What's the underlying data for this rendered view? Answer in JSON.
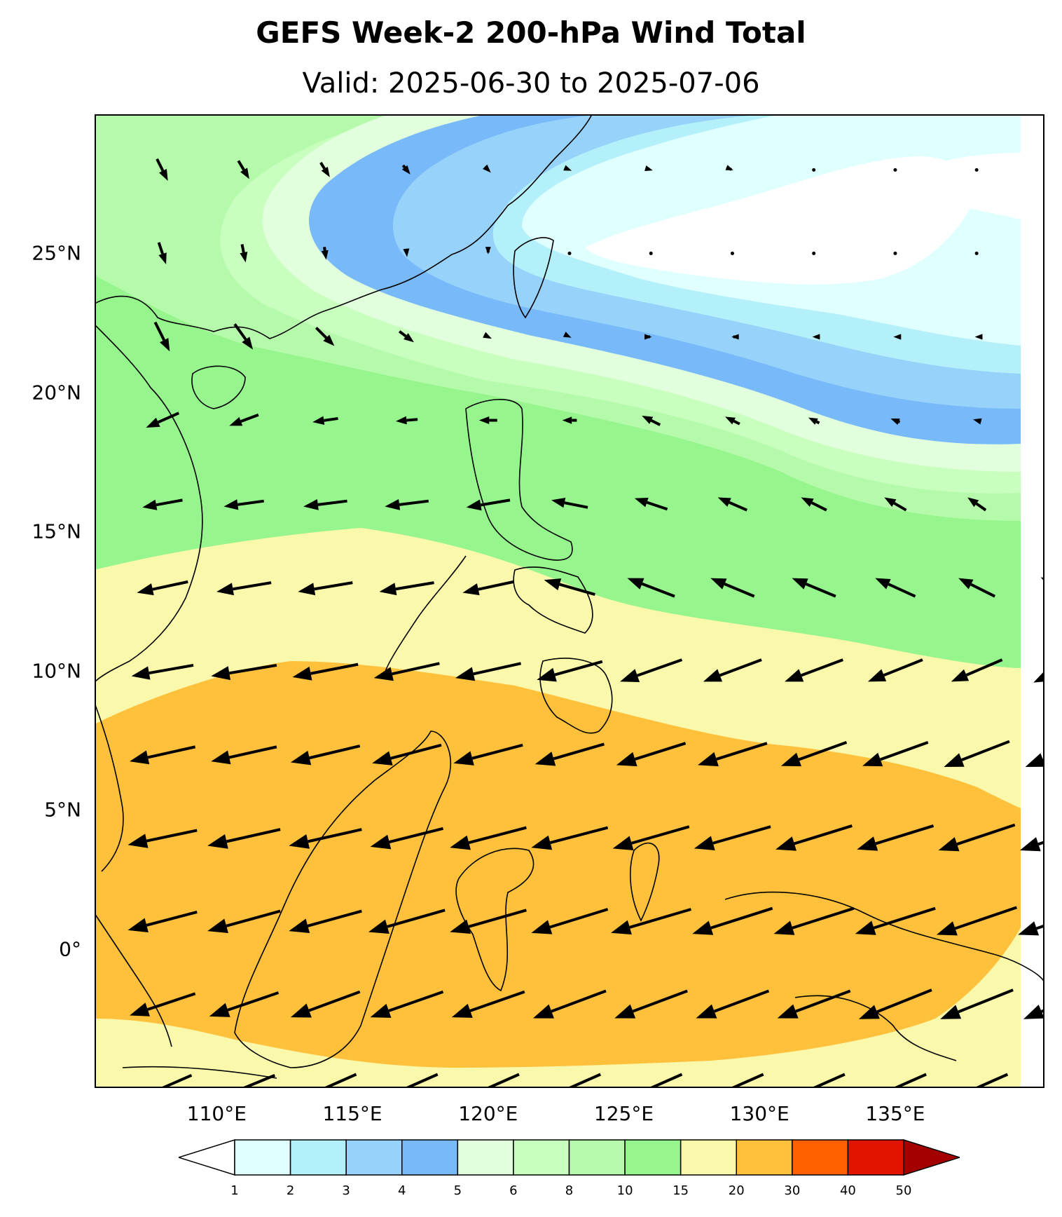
{
  "title": "GEFS Week-2 200-hPa Wind Total",
  "subtitle": "Valid: 2025-06-30 to 2025-07-06",
  "map": {
    "extent": {
      "lon_min": 105.5,
      "lon_max": 140.5,
      "lat_min": -5,
      "lat_max": 30
    },
    "lat_ticks": [
      {
        "value": 25,
        "label": "25°N"
      },
      {
        "value": 20,
        "label": "20°N"
      },
      {
        "value": 15,
        "label": "15°N"
      },
      {
        "value": 10,
        "label": "10°N"
      },
      {
        "value": 5,
        "label": "5°N"
      },
      {
        "value": 0,
        "label": "0°"
      }
    ],
    "lon_ticks": [
      {
        "value": 110,
        "label": "110°E"
      },
      {
        "value": 115,
        "label": "115°E"
      },
      {
        "value": 120,
        "label": "120°E"
      },
      {
        "value": 125,
        "label": "125°E"
      },
      {
        "value": 130,
        "label": "130°E"
      },
      {
        "value": 135,
        "label": "135°E"
      }
    ]
  },
  "colorbar": {
    "levels": [
      "1",
      "2",
      "3",
      "4",
      "5",
      "6",
      "8",
      "10",
      "15",
      "20",
      "30",
      "40",
      "50"
    ],
    "colors": [
      "#e0ffff",
      "#b4f0fa",
      "#96d2fa",
      "#78b9fa",
      "#e1ffdc",
      "#c8ffbe",
      "#b4faaa",
      "#96f58c",
      "#faf8aa",
      "#ffc03c",
      "#ff6000",
      "#e11400",
      "#a50000"
    ],
    "under_color": "#ffffff",
    "over_color": "#a50000"
  },
  "chart_data": {
    "type": "heatmap",
    "variable": "200-hPa wind speed (m/s) with wind vectors",
    "vector_rows": [
      {
        "lat": 28,
        "u": [
          3,
          3,
          2.5,
          2,
          1.5,
          1.2,
          1,
          0.5,
          0.3,
          0.2,
          0.1,
          0.1
        ],
        "v": [
          -6,
          -5,
          -4,
          -2.5,
          -1.5,
          -0.5,
          -0.3,
          -0.2,
          -0.1,
          -0.1,
          0,
          0
        ]
      },
      {
        "lat": 25,
        "u": [
          2,
          1,
          0.5,
          0.2,
          0,
          0,
          0,
          0,
          0,
          0,
          0,
          0.2
        ],
        "v": [
          -6,
          -5,
          -3.5,
          -2,
          -0.5,
          0,
          0,
          0,
          0,
          0,
          0,
          -0.2
        ]
      },
      {
        "lat": 22,
        "u": [
          4,
          5,
          5,
          4,
          2,
          1,
          0.5,
          -0.5,
          -0.8,
          -1,
          -1,
          -1
        ],
        "v": [
          -8,
          -7,
          -5,
          -3,
          -1,
          -0.5,
          0,
          0,
          0,
          0,
          0,
          0
        ]
      },
      {
        "lat": 19,
        "u": [
          -9,
          -8,
          -7,
          -6,
          -5,
          -4,
          -5,
          -4,
          -3,
          -2.5,
          -2,
          -1.5
        ],
        "v": [
          -4,
          -3,
          -1,
          -0.5,
          0,
          0,
          2.5,
          2,
          1.5,
          1,
          0.5,
          0.5
        ]
      },
      {
        "lat": 16,
        "u": [
          -11,
          -11,
          -12,
          -12,
          -12,
          -10,
          -9,
          -8,
          -7,
          -6,
          -5,
          -4.5
        ],
        "v": [
          -2,
          -1.5,
          -1.5,
          -1.5,
          -2,
          2,
          3,
          3.5,
          3.5,
          3.5,
          3.5,
          3.5
        ]
      },
      {
        "lat": 13,
        "u": [
          -14,
          -15,
          -15,
          -15,
          -14,
          -14,
          -13,
          -12,
          -12,
          -11,
          -10,
          -9.5
        ],
        "v": [
          -3,
          -2.5,
          -2.5,
          -2.5,
          -3,
          4,
          5,
          5,
          5,
          5,
          5,
          5.5
        ]
      },
      {
        "lat": 10,
        "u": [
          -17,
          -18,
          -18,
          -18,
          -18,
          -18,
          -17,
          -16,
          -16,
          -15,
          -14,
          -13.5
        ],
        "v": [
          -3,
          -3,
          -3.5,
          -4,
          -4,
          -5,
          -6,
          -6,
          -6,
          -6,
          -6,
          -6.5
        ]
      },
      {
        "lat": 7,
        "u": [
          -18,
          -18,
          -19,
          -19,
          -19,
          -19,
          -19,
          -19,
          -18,
          -18,
          -18,
          -18
        ],
        "v": [
          -4,
          -4,
          -4.5,
          -5,
          -5,
          -5.5,
          -6,
          -6,
          -6.5,
          -6.5,
          -7,
          -7
        ]
      },
      {
        "lat": 4,
        "u": [
          -19,
          -20,
          -20,
          -20,
          -21,
          -21,
          -21,
          -21,
          -21,
          -21,
          -21,
          -21
        ],
        "v": [
          -4,
          -4.5,
          -4.5,
          -5,
          -5.5,
          -5.5,
          -6,
          -6,
          -6.5,
          -6.5,
          -7,
          -7
        ]
      },
      {
        "lat": 1,
        "u": [
          -19,
          -20,
          -20,
          -21,
          -21,
          -21,
          -22,
          -22,
          -22,
          -22,
          -22,
          -22
        ],
        "v": [
          -5,
          -5.5,
          -5.5,
          -6,
          -6,
          -6.5,
          -6.5,
          -7,
          -7,
          -7,
          -7.5,
          -7.5
        ]
      },
      {
        "lat": -2,
        "u": [
          -18,
          -19,
          -19,
          -20,
          -20,
          -20,
          -20,
          -20,
          -20,
          -20,
          -20,
          -19
        ],
        "v": [
          -6,
          -6.5,
          -7,
          -7,
          -7,
          -7.5,
          -7.5,
          -7.5,
          -7.5,
          -8,
          -8,
          -8
        ]
      },
      {
        "lat": -5,
        "u": [
          -16,
          -17,
          -17,
          -17,
          -17,
          -17,
          -17,
          -17,
          -17,
          -17,
          -17,
          -17
        ],
        "v": [
          -7,
          -7,
          -7.5,
          -7.5,
          -7.5,
          -7.5,
          -7.5,
          -7.5,
          -7.5,
          -7.5,
          -7.5,
          -7.5
        ]
      }
    ],
    "vector_lons": [
      108,
      111,
      114,
      117,
      120,
      123,
      126,
      129,
      132,
      135,
      138,
      141
    ],
    "speed_bands": [
      {
        "range": "20-30",
        "description": "equatorial band 8N to 3S"
      },
      {
        "range": "15-20",
        "description": "9N to 13N and south of 3S"
      },
      {
        "range": "10-15",
        "description": "13N to 17N"
      },
      {
        "range": "5-10",
        "description": "NW corner and 17N to 20N"
      },
      {
        "range": "4-5",
        "description": "arc through southern China and 18N at east"
      },
      {
        "range": "1-4",
        "description": "22N to 27N"
      },
      {
        "range": "<1",
        "description": "anticyclone center east of Taiwan near 25N"
      }
    ]
  }
}
